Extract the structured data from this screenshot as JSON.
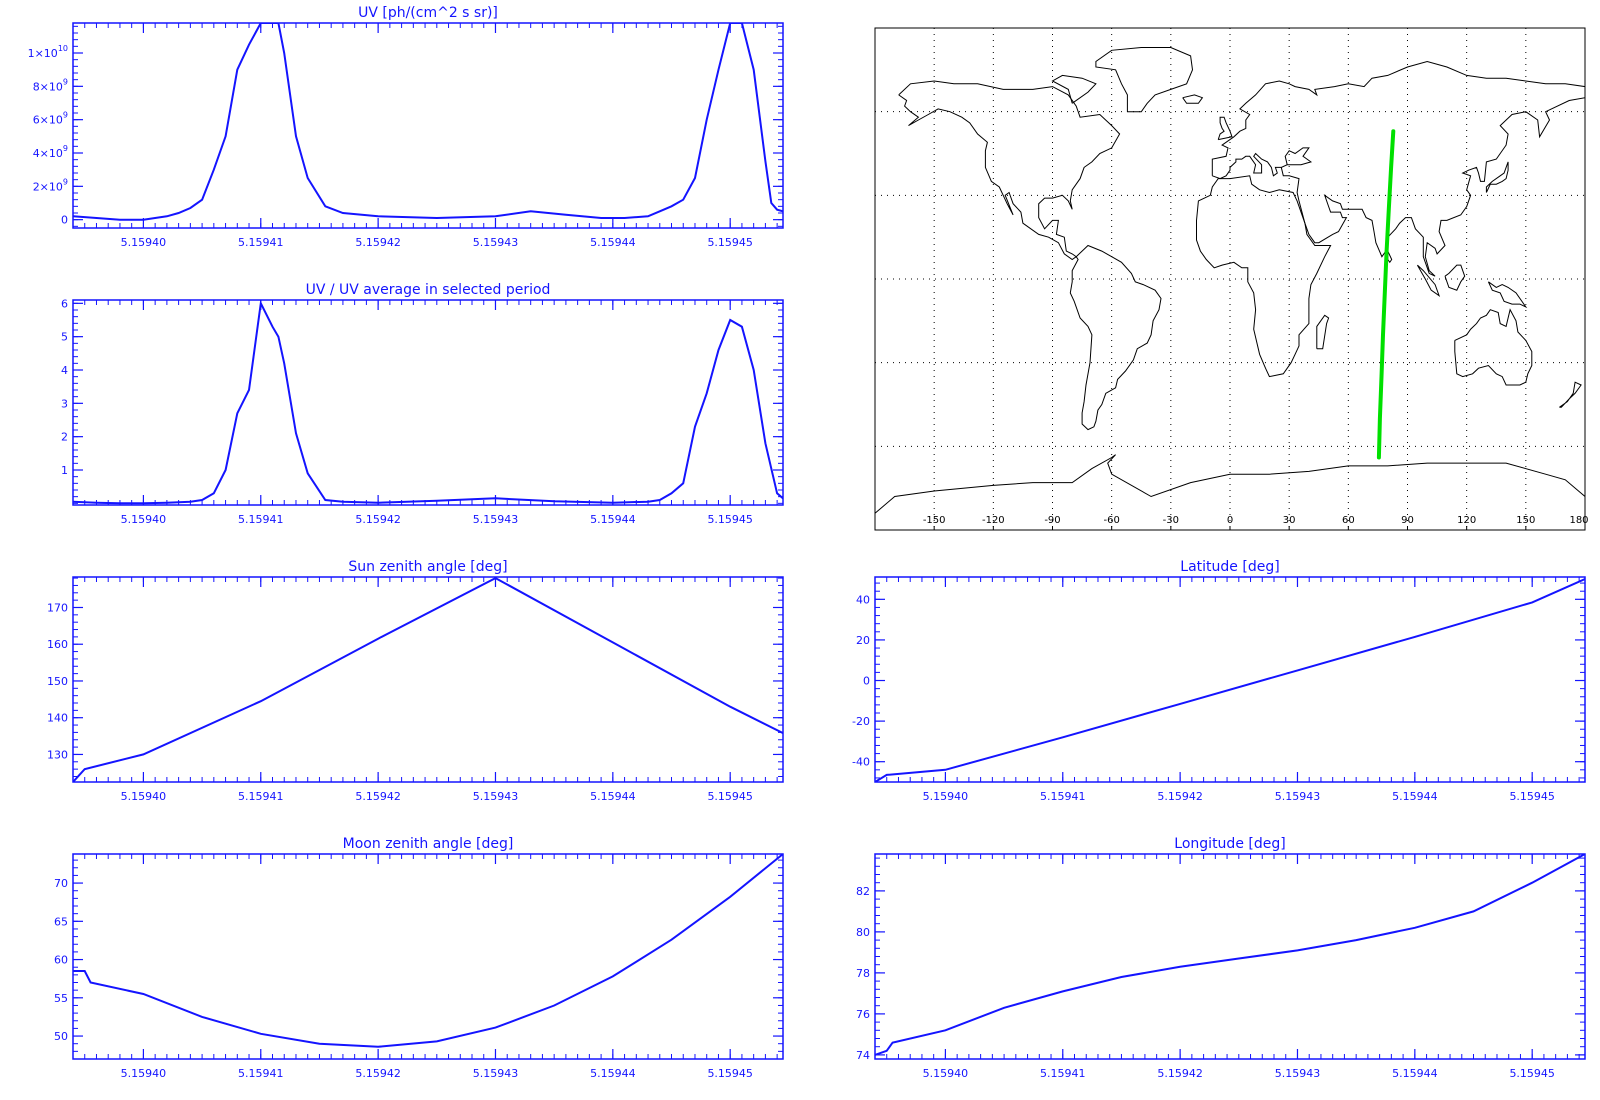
{
  "colors": {
    "plot": "#1414ff",
    "track": "#00e000",
    "map": "#000000"
  },
  "chart_data": [
    {
      "id": "uv",
      "type": "line",
      "title": "UV [ph/(cm^2 s sr)]",
      "xlim": [
        5.159394,
        5.1594545
      ],
      "ylim": [
        -500000000.0,
        11800000000.0
      ],
      "xticks": [
        5.1594,
        5.15941,
        5.15942,
        5.15943,
        5.15944,
        5.15945
      ],
      "xtick_labels": [
        "5.15940",
        "5.15941",
        "5.15942",
        "5.15943",
        "5.15944",
        "5.15945"
      ],
      "yticks": [
        0,
        2000000000.0,
        4000000000.0,
        6000000000.0,
        8000000000.0,
        10000000000.0
      ],
      "ytick_labels": [
        {
          "base": "0",
          "exp": ""
        },
        {
          "base": "2×10",
          "exp": "9"
        },
        {
          "base": "4×10",
          "exp": "9"
        },
        {
          "base": "6×10",
          "exp": "9"
        },
        {
          "base": "8×10",
          "exp": "9"
        },
        {
          "base": "1×10",
          "exp": "10"
        }
      ],
      "x": [
        5.159394,
        5.159396,
        5.159398,
        5.1594,
        5.159401,
        5.159402,
        5.159403,
        5.159404,
        5.159405,
        5.159406,
        5.159407,
        5.159408,
        5.159409,
        5.15941,
        5.159411,
        5.1594115,
        5.159412,
        5.159413,
        5.159414,
        5.1594155,
        5.159417,
        5.15942,
        5.159425,
        5.15943,
        5.159433,
        5.159436,
        5.159439,
        5.159441,
        5.159443,
        5.159444,
        5.159445,
        5.159446,
        5.159447,
        5.159448,
        5.159449,
        5.15945,
        5.159451,
        5.159452,
        5.159453,
        5.1594535,
        5.159454,
        5.1594545
      ],
      "y": [
        200000000.0,
        100000000.0,
        0.0,
        0.0,
        100000000.0,
        200000000.0,
        400000000.0,
        700000000.0,
        1200000000.0,
        3000000000.0,
        5000000000.0,
        9000000000.0,
        10500000000.0,
        11800000000.0,
        11800000000.0,
        11800000000.0,
        10000000000.0,
        5000000000.0,
        2500000000.0,
        800000000.0,
        400000000.0,
        200000000.0,
        100000000.0,
        200000000.0,
        500000000.0,
        300000000.0,
        100000000.0,
        100000000.0,
        200000000.0,
        500000000.0,
        800000000.0,
        1200000000.0,
        2500000000.0,
        6000000000.0,
        9000000000.0,
        11800000000.0,
        11800000000.0,
        9000000000.0,
        3500000000.0,
        1000000000.0,
        600000000.0,
        500000000.0
      ]
    },
    {
      "id": "uvratio",
      "type": "line",
      "title": "UV / UV average in selected period",
      "xlim": [
        5.159394,
        5.1594545
      ],
      "ylim": [
        -0.05,
        6.1
      ],
      "xticks": [
        5.1594,
        5.15941,
        5.15942,
        5.15943,
        5.15944,
        5.15945
      ],
      "xtick_labels": [
        "5.15940",
        "5.15941",
        "5.15942",
        "5.15943",
        "5.15944",
        "5.15945"
      ],
      "yticks": [
        1,
        2,
        3,
        4,
        5,
        6
      ],
      "ytick_labels": [
        "1",
        "2",
        "3",
        "4",
        "5",
        "6"
      ],
      "x": [
        5.159394,
        5.159396,
        5.159398,
        5.1594,
        5.159402,
        5.159404,
        5.159405,
        5.159406,
        5.159407,
        5.159408,
        5.159409,
        5.15941,
        5.159411,
        5.1594115,
        5.159412,
        5.159413,
        5.159414,
        5.1594155,
        5.159417,
        5.15942,
        5.159425,
        5.15943,
        5.159435,
        5.15944,
        5.159443,
        5.159444,
        5.159445,
        5.159446,
        5.159447,
        5.159448,
        5.159449,
        5.15945,
        5.159451,
        5.159452,
        5.159453,
        5.159454,
        5.1594545
      ],
      "y": [
        0.05,
        0.02,
        0.0,
        0.0,
        0.02,
        0.05,
        0.1,
        0.3,
        1.0,
        2.7,
        3.4,
        6.0,
        5.3,
        5.0,
        4.2,
        2.1,
        0.9,
        0.1,
        0.05,
        0.02,
        0.08,
        0.15,
        0.06,
        0.02,
        0.05,
        0.1,
        0.3,
        0.6,
        2.3,
        3.3,
        4.6,
        5.5,
        5.3,
        4.0,
        1.8,
        0.3,
        0.15
      ]
    },
    {
      "id": "sza",
      "type": "line",
      "title": "Sun zenith angle [deg]",
      "xlim": [
        5.159394,
        5.1594545
      ],
      "ylim": [
        122.5,
        178.3
      ],
      "xticks": [
        5.1594,
        5.15941,
        5.15942,
        5.15943,
        5.15944,
        5.15945
      ],
      "xtick_labels": [
        "5.15940",
        "5.15941",
        "5.15942",
        "5.15943",
        "5.15944",
        "5.15945"
      ],
      "yticks": [
        130,
        140,
        150,
        160,
        170
      ],
      "ytick_labels": [
        "130",
        "140",
        "150",
        "160",
        "170"
      ],
      "x": [
        5.159394,
        5.159395,
        5.1594,
        5.15941,
        5.15942,
        5.15943,
        5.15944,
        5.15945,
        5.1594545
      ],
      "y": [
        122.5,
        126.0,
        130.0,
        144.5,
        161.5,
        178.0,
        160.5,
        143.0,
        135.8
      ]
    },
    {
      "id": "lat",
      "type": "line",
      "title": "Latitude [deg]",
      "xlim": [
        5.159394,
        5.1594545
      ],
      "ylim": [
        -50,
        51
      ],
      "xticks": [
        5.1594,
        5.15941,
        5.15942,
        5.15943,
        5.15944,
        5.15945
      ],
      "xtick_labels": [
        "5.15940",
        "5.15941",
        "5.15942",
        "5.15943",
        "5.15944",
        "5.15945"
      ],
      "yticks": [
        -40,
        -20,
        0,
        20,
        40
      ],
      "ytick_labels": [
        "-40",
        "-20",
        "0",
        "20",
        "40"
      ],
      "x": [
        5.159394,
        5.159395,
        5.1594,
        5.15941,
        5.15942,
        5.15943,
        5.15944,
        5.15945,
        5.1594545
      ],
      "y": [
        -50.0,
        -46.5,
        -44.0,
        -28.0,
        -11.5,
        5.0,
        21.5,
        38.5,
        50.0
      ]
    },
    {
      "id": "mza",
      "type": "line",
      "title": "Moon zenith angle [deg]",
      "xlim": [
        5.159394,
        5.1594545
      ],
      "ylim": [
        47.0,
        73.8
      ],
      "xticks": [
        5.1594,
        5.15941,
        5.15942,
        5.15943,
        5.15944,
        5.15945
      ],
      "xtick_labels": [
        "5.15940",
        "5.15941",
        "5.15942",
        "5.15943",
        "5.15944",
        "5.15945"
      ],
      "yticks": [
        50,
        55,
        60,
        65,
        70
      ],
      "ytick_labels": [
        "50",
        "55",
        "60",
        "65",
        "70"
      ],
      "x": [
        5.159394,
        5.159395,
        5.1593955,
        5.1594,
        5.159405,
        5.15941,
        5.159415,
        5.15942,
        5.159425,
        5.15943,
        5.159435,
        5.15944,
        5.159445,
        5.15945,
        5.1594545
      ],
      "y": [
        58.5,
        58.5,
        57.0,
        55.5,
        52.5,
        50.3,
        49.0,
        48.6,
        49.3,
        51.1,
        54.0,
        57.8,
        62.6,
        68.2,
        73.8
      ]
    },
    {
      "id": "lon",
      "type": "line",
      "title": "Longitude [deg]",
      "xlim": [
        5.159394,
        5.1594545
      ],
      "ylim": [
        73.8,
        83.8
      ],
      "xticks": [
        5.1594,
        5.15941,
        5.15942,
        5.15943,
        5.15944,
        5.15945
      ],
      "xtick_labels": [
        "5.15940",
        "5.15941",
        "5.15942",
        "5.15943",
        "5.15944",
        "5.15945"
      ],
      "yticks": [
        74,
        76,
        78,
        80,
        82
      ],
      "ytick_labels": [
        "74",
        "76",
        "78",
        "80",
        "82"
      ],
      "x": [
        5.159394,
        5.159395,
        5.1593955,
        5.1594,
        5.159405,
        5.15941,
        5.159415,
        5.15942,
        5.159425,
        5.15943,
        5.159435,
        5.15944,
        5.159445,
        5.15945,
        5.1594545
      ],
      "y": [
        74.0,
        74.2,
        74.6,
        75.2,
        76.3,
        77.1,
        77.8,
        78.3,
        78.7,
        79.1,
        79.6,
        80.2,
        81.0,
        82.4,
        83.8
      ]
    }
  ],
  "map": {
    "lon_ticks": [
      "-150",
      "-120",
      "-90",
      "-60",
      "-30",
      "0",
      "30",
      "60",
      "90",
      "120",
      "150",
      "180"
    ],
    "track": {
      "lon": [
        75.5,
        76.0,
        76.8,
        77.6,
        78.5,
        79.4,
        80.5,
        81.7,
        82.8
      ],
      "lat": [
        -64,
        -50,
        -35,
        -20,
        -5,
        10,
        25,
        40,
        53
      ]
    }
  }
}
